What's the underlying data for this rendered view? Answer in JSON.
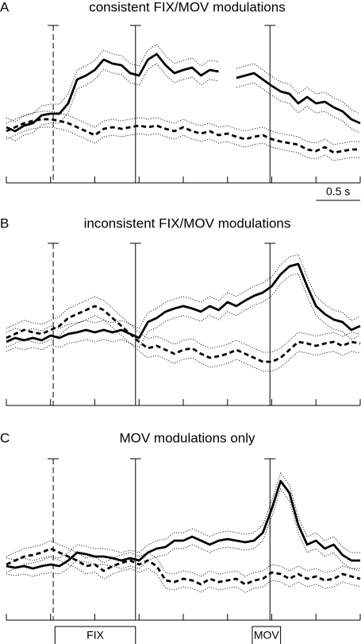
{
  "chart_data": [
    {
      "type": "line",
      "letter": "A",
      "title": "consistent  FIX/MOV modulations",
      "x": [
        0,
        0.1,
        0.2,
        0.3,
        0.4,
        0.5,
        0.6,
        0.7,
        0.8,
        0.9,
        1,
        1.1,
        1.2,
        1.3,
        1.4,
        1.5,
        1.6,
        1.7,
        1.8,
        1.9,
        2,
        2.1,
        2.2,
        2.3,
        2.4,
        2.5,
        2.6,
        2.7,
        2.8,
        2.9,
        3,
        3.1,
        3.2,
        3.3,
        3.4,
        3.5,
        3.6,
        3.7,
        3.8,
        3.9,
        4
      ],
      "xlim": [
        0,
        4
      ],
      "xticks": [
        0,
        0.5,
        1,
        1.5,
        2,
        2.5,
        3,
        3.5,
        4
      ],
      "ylim": [
        0,
        100
      ],
      "events": [
        {
          "value": 0.53,
          "style": "dashed"
        },
        {
          "value": 1.46,
          "style": "solid"
        },
        {
          "value": 2.98,
          "style": "solid"
        }
      ],
      "scale_bar": {
        "value": 0.5,
        "label": "0.5 s"
      },
      "series": [
        {
          "color": "#000000",
          "style": "solid",
          "error": 6,
          "values": [
            35,
            32.5,
            36,
            37.5,
            42.5,
            43.5,
            43.5,
            50,
            65,
            67.5,
            71,
            77.5,
            75,
            74,
            69,
            67.5,
            77.5,
            81,
            74,
            69,
            71,
            72.5,
            67.5,
            71,
            70,
            null,
            66,
            67.5,
            69,
            65,
            61,
            57.5,
            56,
            50,
            54,
            50,
            51,
            47.5,
            45,
            40,
            37.5
          ]
        },
        {
          "color": "#000000",
          "style": "dashed",
          "error": 5,
          "values": [
            32.5,
            35,
            37.5,
            39,
            40,
            40,
            39,
            37.5,
            35,
            32.5,
            30,
            34,
            35,
            34,
            35,
            36,
            35,
            36,
            34,
            32.5,
            35,
            32.5,
            31,
            32.5,
            30,
            31,
            29,
            27.5,
            29,
            30,
            27.5,
            26,
            25,
            24,
            21,
            20,
            22.5,
            19,
            20,
            21,
            21
          ]
        }
      ]
    },
    {
      "type": "line",
      "letter": "B",
      "title": "inconsistent  FIX/MOV modulations",
      "x": [
        0,
        0.1,
        0.2,
        0.3,
        0.4,
        0.5,
        0.6,
        0.7,
        0.8,
        0.9,
        1,
        1.1,
        1.2,
        1.3,
        1.4,
        1.5,
        1.6,
        1.7,
        1.8,
        1.9,
        2,
        2.1,
        2.2,
        2.3,
        2.4,
        2.5,
        2.6,
        2.7,
        2.8,
        2.9,
        3,
        3.1,
        3.2,
        3.3,
        3.4,
        3.5,
        3.6,
        3.7,
        3.8,
        3.9,
        4
      ],
      "xlim": [
        0,
        4
      ],
      "xticks": [
        0,
        0.5,
        1,
        1.5,
        2,
        2.5,
        3,
        3.5,
        4
      ],
      "ylim": [
        0,
        100
      ],
      "events": [
        {
          "value": 0.53,
          "style": "dashed"
        },
        {
          "value": 1.46,
          "style": "solid"
        },
        {
          "value": 2.98,
          "style": "solid"
        }
      ],
      "series": [
        {
          "color": "#000000",
          "style": "solid",
          "error": 6,
          "values": [
            40,
            42.5,
            41,
            42.5,
            41,
            44,
            42.5,
            45,
            46,
            47.5,
            46,
            47.5,
            46,
            47.5,
            45,
            42.5,
            52.5,
            55,
            59,
            61,
            62.5,
            61,
            59,
            62.5,
            60,
            65,
            62.5,
            66,
            69,
            71,
            75,
            82.5,
            87.5,
            89,
            75,
            62.5,
            57.5,
            54,
            52.5,
            47.5,
            50
          ]
        },
        {
          "color": "#000000",
          "style": "dashed",
          "error": 6,
          "values": [
            42.5,
            45,
            47.5,
            46,
            45,
            47.5,
            50,
            55,
            57.5,
            60,
            62.5,
            60,
            55,
            50,
            45,
            40,
            36,
            37.5,
            35,
            32.5,
            35,
            36,
            32.5,
            30,
            31,
            32.5,
            35,
            32.5,
            30,
            27.5,
            27.5,
            30,
            35,
            40,
            39,
            37.5,
            39,
            40,
            37.5,
            40,
            39
          ]
        }
      ]
    },
    {
      "type": "line",
      "letter": "C",
      "title": "MOV modulations only",
      "x": [
        0,
        0.1,
        0.2,
        0.3,
        0.4,
        0.5,
        0.6,
        0.7,
        0.8,
        0.9,
        1,
        1.1,
        1.2,
        1.3,
        1.4,
        1.5,
        1.6,
        1.7,
        1.8,
        1.9,
        2,
        2.1,
        2.2,
        2.3,
        2.4,
        2.5,
        2.6,
        2.7,
        2.8,
        2.9,
        3,
        3.1,
        3.2,
        3.3,
        3.4,
        3.5,
        3.6,
        3.7,
        3.8,
        3.9,
        4
      ],
      "xlim": [
        0,
        4
      ],
      "xticks": [
        0,
        0.5,
        1,
        1.5,
        2,
        2.5,
        3,
        3.5,
        4
      ],
      "ylim": [
        0,
        100
      ],
      "events": [
        {
          "value": 0.53,
          "style": "dashed"
        },
        {
          "value": 1.46,
          "style": "solid"
        },
        {
          "value": 2.98,
          "style": "solid"
        }
      ],
      "periods": [
        {
          "label": "FIX",
          "start": 0.55,
          "end": 1.46
        },
        {
          "label": "MOV",
          "start": 2.78,
          "end": 3.1
        }
      ],
      "series": [
        {
          "color": "#000000",
          "style": "solid",
          "error": 5,
          "values": [
            34,
            33,
            34,
            32.5,
            34,
            35,
            34,
            37.5,
            42.5,
            41.5,
            40,
            40,
            39,
            37.5,
            39,
            37.5,
            42.5,
            45,
            46,
            50,
            50,
            52.5,
            50,
            47.5,
            50,
            51,
            50,
            49,
            50,
            55,
            70,
            87.5,
            80,
            60,
            47.5,
            50,
            45,
            47.5,
            41,
            37.5,
            37.5
          ]
        },
        {
          "color": "#000000",
          "style": "dashed",
          "error": 5,
          "values": [
            35,
            37.5,
            40,
            41,
            42.5,
            45,
            42.5,
            40,
            37.5,
            34,
            35,
            31,
            34,
            36,
            37.5,
            35,
            37.5,
            34,
            25,
            24,
            26,
            25,
            22.5,
            26,
            24,
            25,
            26,
            22.5,
            25,
            26,
            30,
            29,
            26,
            29,
            26,
            27.5,
            25,
            26,
            29,
            27.5,
            26
          ]
        }
      ]
    }
  ]
}
